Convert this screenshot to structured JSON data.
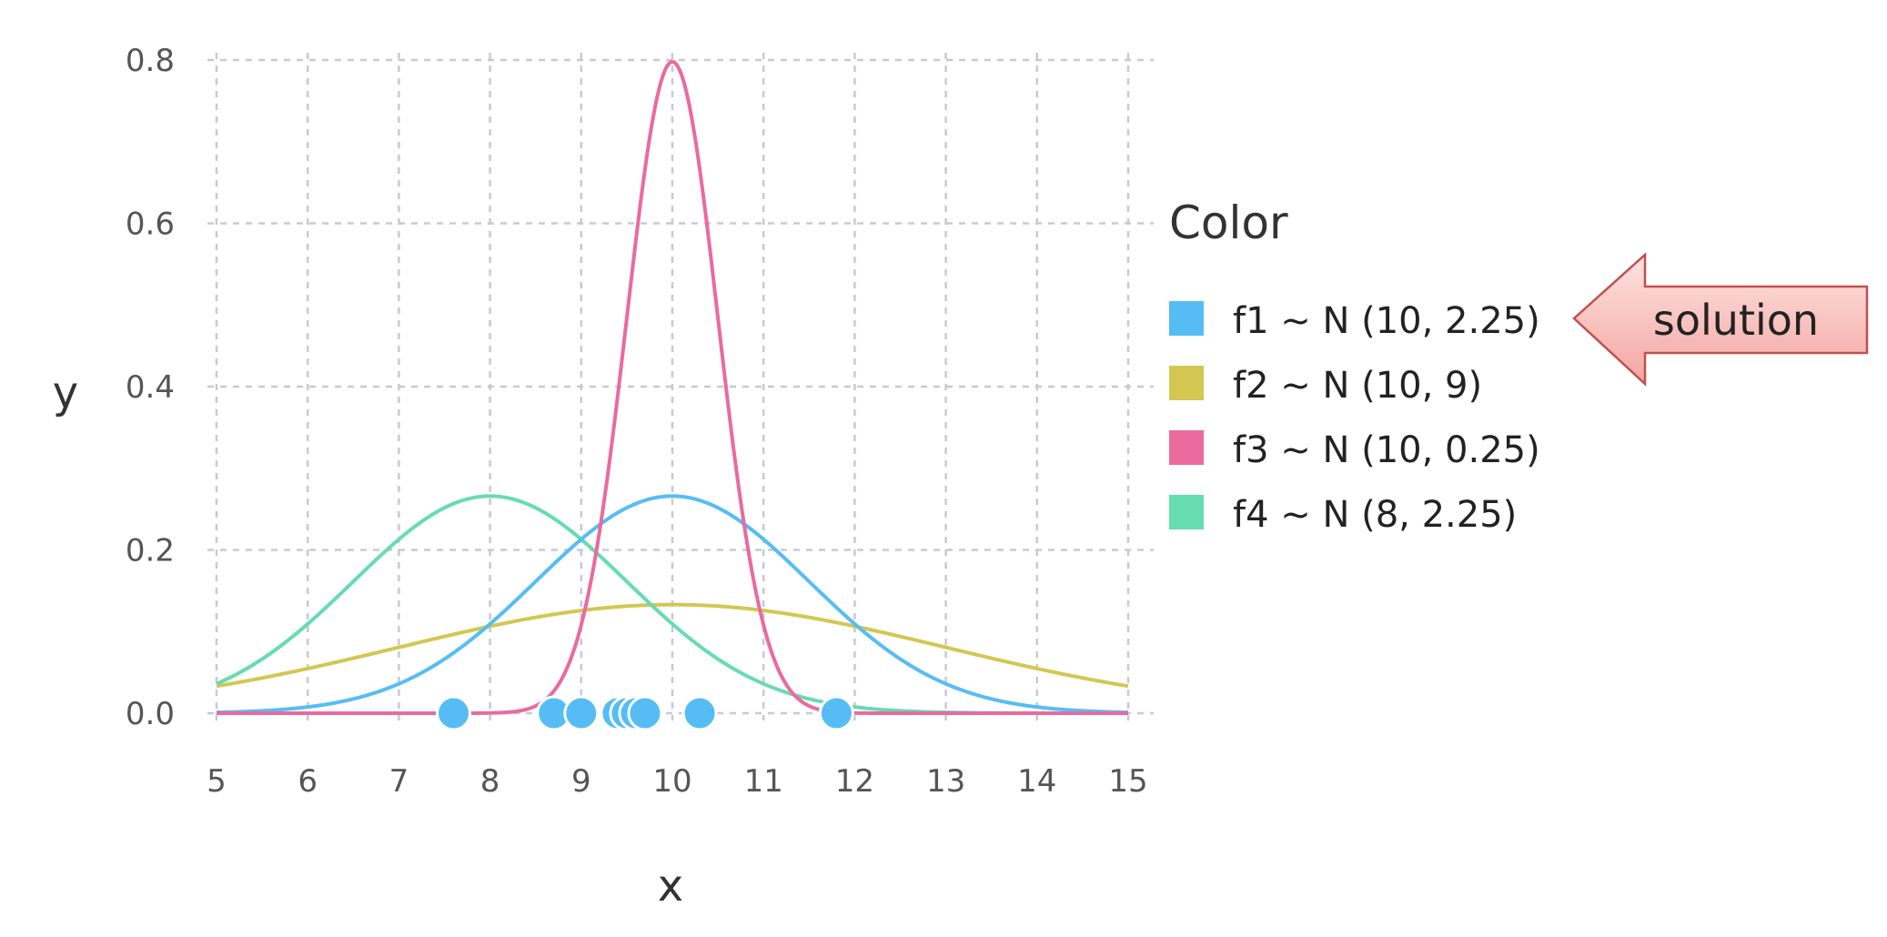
{
  "chart_data": {
    "type": "line",
    "xlabel": "x",
    "ylabel": "y",
    "xlim": [
      5,
      15
    ],
    "ylim": [
      0,
      0.8
    ],
    "x_ticks": [
      "5",
      "6",
      "7",
      "8",
      "9",
      "10",
      "11",
      "12",
      "13",
      "14",
      "15"
    ],
    "y_ticks": [
      "0.0",
      "0.2",
      "0.4",
      "0.6",
      "0.8"
    ],
    "grid": true,
    "legend": {
      "title": "Color",
      "placement": "right"
    },
    "series": [
      {
        "name": "f1 ~ N (10, 2.25)",
        "mean": 10,
        "variance": 2.25,
        "color": "#56bdf4"
      },
      {
        "name": "f2 ~ N (10, 9)",
        "mean": 10,
        "variance": 9,
        "color": "#d3c752"
      },
      {
        "name": "f3 ~ N (10, 0.25)",
        "mean": 10,
        "variance": 0.25,
        "color": "#ea6aa0"
      },
      {
        "name": "f4 ~ N (8, 2.25)",
        "mean": 8,
        "variance": 2.25,
        "color": "#66dcb0"
      }
    ],
    "points": {
      "color": "#56bdf4",
      "x": [
        7.6,
        8.7,
        9.0,
        9.4,
        9.5,
        9.6,
        9.7,
        10.3,
        11.8
      ],
      "y": [
        0,
        0,
        0,
        0,
        0,
        0,
        0,
        0,
        0
      ]
    },
    "annotation": {
      "text": "solution",
      "points_to": "f1 ~ N (10, 2.25)"
    }
  }
}
